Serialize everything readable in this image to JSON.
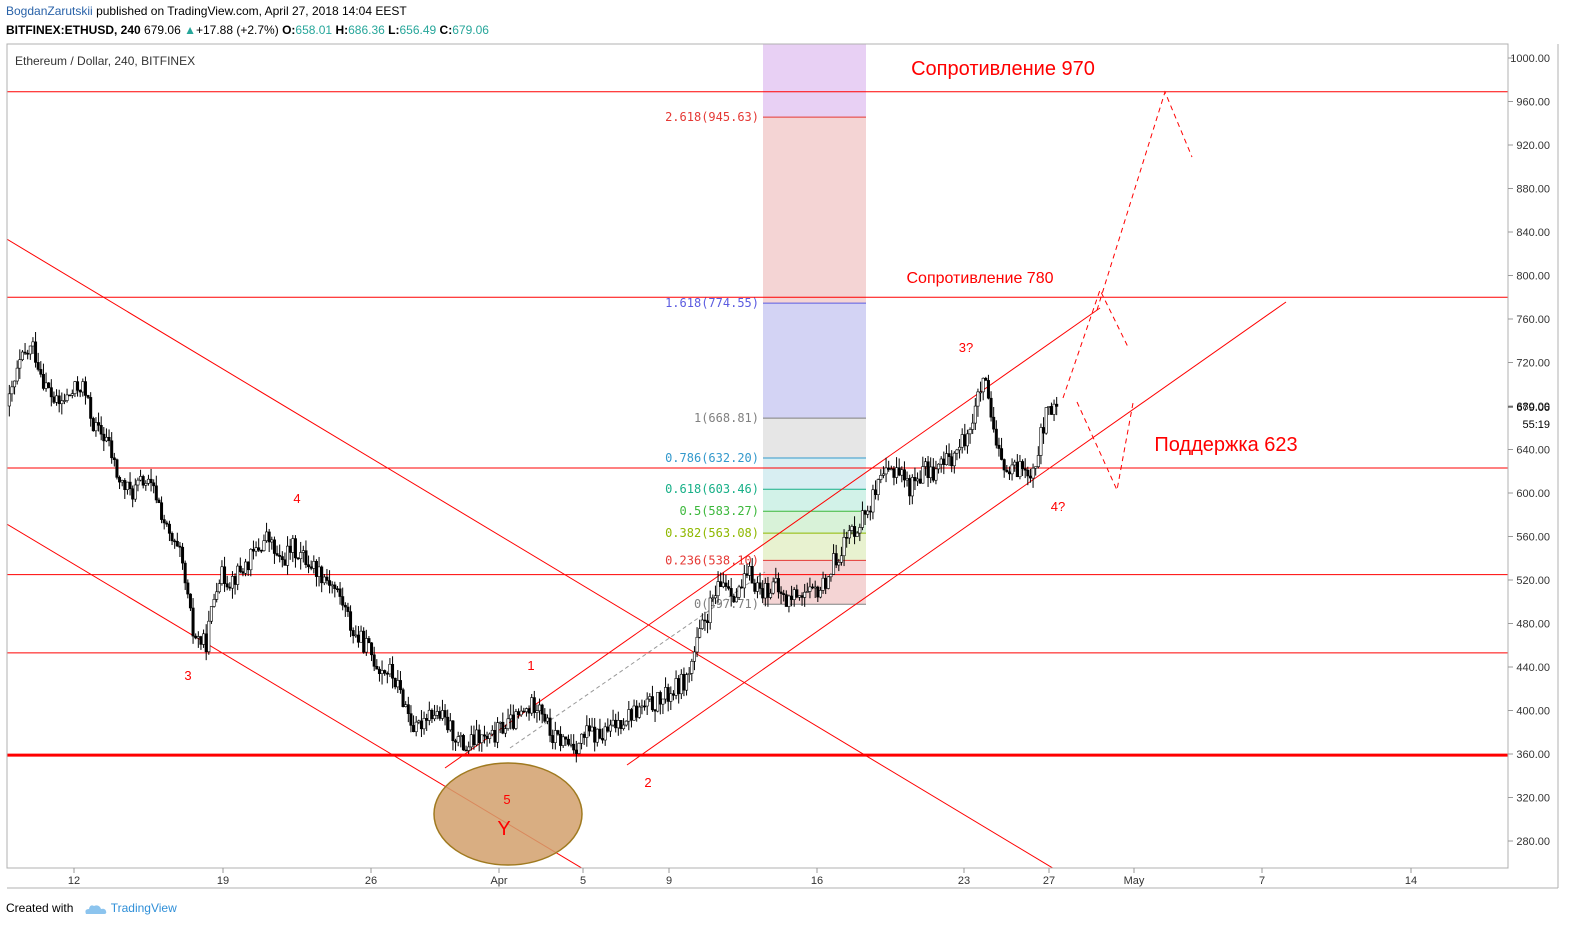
{
  "header": {
    "author": "BogdanZarutskii",
    "published_text": "published on TradingView.com, April 27, 2018 14:04 EEST",
    "symbol": "BITFINEX:ETHUSD, 240",
    "last": "679.06",
    "change_arrow": "▲",
    "change": "+17.88 (+2.7%)",
    "o_label": "O:",
    "o_value": "658.01",
    "h_label": "H:",
    "h_value": "686.36",
    "l_label": "L:",
    "l_value": "656.49",
    "c_label": "C:",
    "c_value": "679.06"
  },
  "footer": {
    "created_with": "Created with",
    "brand": "TradingView",
    "brand_icon": "tradingview-cloud-icon"
  },
  "colors": {
    "line_red": "#ff0000",
    "candle": "#000000",
    "brand_blue": "#2f8fd8",
    "up_green": "#26a69a"
  },
  "chart_data": {
    "type": "candlestick",
    "title": "Ethereum / Dollar, 240, BITFINEX",
    "y_range": [
      245,
      1015
    ],
    "y_ticks": [
      "1000.00",
      "960.00",
      "920.00",
      "880.00",
      "840.00",
      "800.00",
      "760.00",
      "720.00",
      "680.00",
      "640.00",
      "600.00",
      "560.00",
      "520.00",
      "480.00",
      "440.00",
      "400.00",
      "360.00",
      "320.00",
      "280.00"
    ],
    "x_ticks": [
      "12",
      "19",
      "26",
      "Apr",
      "5",
      "9",
      "16",
      "23",
      "27",
      "May",
      "7",
      "14"
    ],
    "price_label": "679.06",
    "countdown_label": "55:19",
    "horizontal_levels": [
      {
        "price": 969,
        "bold": false
      },
      {
        "price": 780,
        "bold": false
      },
      {
        "price": 623,
        "bold": false
      },
      {
        "price": 525,
        "bold": false
      },
      {
        "price": 453,
        "bold": false
      },
      {
        "price": 359,
        "bold": true
      }
    ],
    "fibonacci": [
      {
        "ratio": "2.618",
        "price": "945.63",
        "label": "2.618(945.63)",
        "color": "#e53935",
        "zone": "#f4d4d4"
      },
      {
        "ratio": "1.618",
        "price": "774.55",
        "label": "1.618(774.55)",
        "color": "#5c5ce0",
        "zone": "#d3d3f4"
      },
      {
        "ratio": "1",
        "price": "668.81",
        "label": "1(668.81)",
        "color": "#808080",
        "zone": "#e6e6e6"
      },
      {
        "ratio": "0.786",
        "price": "632.20",
        "label": "0.786(632.20)",
        "color": "#3399cc",
        "zone": "#d8eef2"
      },
      {
        "ratio": "0.618",
        "price": "603.46",
        "label": "0.618(603.46)",
        "color": "#18b088",
        "zone": "#d2f2e8"
      },
      {
        "ratio": "0.5",
        "price": "583.27",
        "label": "0.5(583.27)",
        "color": "#3cb83c",
        "zone": "#d8f2d8"
      },
      {
        "ratio": "0.382",
        "price": "563.08",
        "label": "0.382(563.08)",
        "color": "#8fb800",
        "zone": "#e8f2d0"
      },
      {
        "ratio": "0.236",
        "price": "538.10",
        "label": "0.236(538.10)",
        "color": "#e53935",
        "zone": "#f4d4d4"
      },
      {
        "ratio": "0",
        "price": "497.71",
        "label": "0(497.71)",
        "color": "#808080",
        "zone": "#f4d4d4"
      }
    ],
    "annotations": {
      "resistance_970": "Сопротивление 970",
      "resistance_780": "Сопротивление 780",
      "support_623": "Поддержка 623",
      "w1": "1",
      "w2": "2",
      "w3a": "3",
      "w4a": "4",
      "w5": "5",
      "wY": "Y",
      "w3q": "3?",
      "w4q": "4?"
    },
    "series": [
      {
        "name": "ETHUSD",
        "path_values": [
          680,
          720,
          735,
          700,
          680,
          690,
          700,
          660,
          650,
          610,
          600,
          612,
          598,
          560,
          540,
          470,
          460,
          525,
          520,
          530,
          545,
          560,
          535,
          550,
          540,
          530,
          520,
          502,
          470,
          460,
          440,
          435,
          410,
          380,
          400,
          395,
          380,
          365,
          375,
          372,
          385,
          390,
          400,
          410,
          375,
          372,
          368,
          380,
          375,
          385,
          395,
          400,
          405,
          410,
          420,
          430,
          470,
          500,
          520,
          505,
          525,
          510,
          515,
          500,
          510,
          505,
          515,
          540,
          560,
          575,
          595,
          615,
          625,
          605,
          620,
          620,
          630,
          640,
          665,
          705,
          640,
          615,
          625,
          622,
          670,
          680
        ]
      }
    ]
  }
}
